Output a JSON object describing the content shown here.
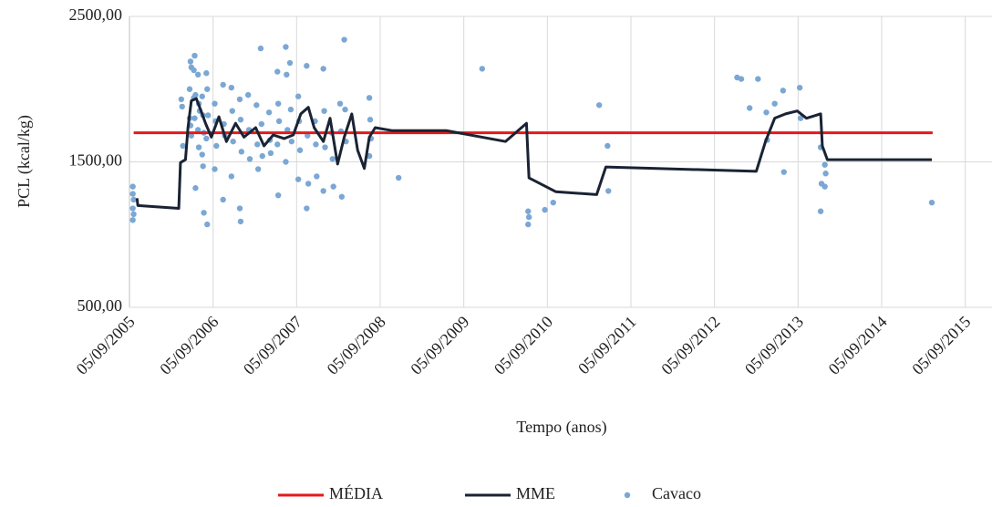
{
  "chart_data": {
    "type": "line",
    "y_label": "PCL (kcal/kg)",
    "x_label": "Tempo (anos)",
    "xlim": [
      2005.68,
      2016.0
    ],
    "ylim": [
      500,
      2500
    ],
    "xticks": [
      {
        "value": 2005.68,
        "label": "05/09/2005"
      },
      {
        "value": 2006.68,
        "label": "05/09/2006"
      },
      {
        "value": 2007.68,
        "label": "05/09/2007"
      },
      {
        "value": 2008.68,
        "label": "05/09/2008"
      },
      {
        "value": 2009.68,
        "label": "05/09/2009"
      },
      {
        "value": 2010.68,
        "label": "05/09/2010"
      },
      {
        "value": 2011.68,
        "label": "05/09/2011"
      },
      {
        "value": 2012.68,
        "label": "05/09/2012"
      },
      {
        "value": 2013.68,
        "label": "05/09/2013"
      },
      {
        "value": 2014.68,
        "label": "05/09/2014"
      },
      {
        "value": 2015.68,
        "label": "05/09/2015"
      }
    ],
    "yticks": [
      {
        "value": 500,
        "label": "500,00"
      },
      {
        "value": 1500,
        "label": "1500,00"
      },
      {
        "value": 2500,
        "label": "2500,00"
      }
    ],
    "grid": true,
    "series": [
      {
        "name": "MÉDIA",
        "type": "line",
        "color": "#e31a1c",
        "x": [
          2005.73,
          2015.29
        ],
        "values": [
          1700,
          1700
        ]
      },
      {
        "name": "MME",
        "type": "line",
        "color": "#1a2333",
        "x": [
          2005.77,
          2005.78,
          2006.27,
          2006.29,
          2006.35,
          2006.38,
          2006.42,
          2006.48,
          2006.53,
          2006.59,
          2006.66,
          2006.75,
          2006.84,
          2006.95,
          2007.05,
          2007.19,
          2007.29,
          2007.4,
          2007.53,
          2007.64,
          2007.73,
          2007.82,
          2007.89,
          2008.0,
          2008.08,
          2008.17,
          2008.25,
          2008.34,
          2008.41,
          2008.49,
          2008.55,
          2008.62,
          2008.82,
          2009.47,
          2010.18,
          2010.43,
          2010.46,
          2010.78,
          2011.27,
          2011.38,
          2013.18,
          2013.29,
          2013.4,
          2013.53,
          2013.67,
          2013.78,
          2013.95,
          2013.97,
          2014.03,
          2015.28
        ],
        "values": [
          1250,
          1200,
          1180,
          1495,
          1515,
          1735,
          1920,
          1935,
          1860,
          1765,
          1670,
          1810,
          1640,
          1765,
          1670,
          1735,
          1610,
          1685,
          1660,
          1685,
          1830,
          1875,
          1735,
          1640,
          1800,
          1485,
          1670,
          1830,
          1580,
          1455,
          1670,
          1735,
          1715,
          1715,
          1640,
          1765,
          1390,
          1295,
          1275,
          1465,
          1435,
          1640,
          1800,
          1830,
          1850,
          1800,
          1830,
          1610,
          1515,
          1515
        ]
      },
      {
        "name": "Cavaco",
        "type": "scatter",
        "color": "#7ba7d4",
        "x": [
          2005.72,
          2005.72,
          2005.73,
          2005.72,
          2005.73,
          2005.72,
          2006.3,
          2006.31,
          2006.32,
          2006.4,
          2006.41,
          2006.42,
          2006.4,
          2006.41,
          2006.42,
          2006.45,
          2006.46,
          2006.47,
          2006.45,
          2006.46,
          2006.47,
          2006.5,
          2006.51,
          2006.52,
          2006.5,
          2006.51,
          2006.55,
          2006.56,
          2006.57,
          2006.55,
          2006.56,
          2006.57,
          2006.6,
          2006.61,
          2006.62,
          2006.6,
          2006.61,
          2006.7,
          2006.71,
          2006.72,
          2006.7,
          2006.8,
          2006.81,
          2006.82,
          2006.8,
          2006.9,
          2006.91,
          2006.92,
          2006.9,
          2007.0,
          2007.01,
          2007.02,
          2007.0,
          2007.01,
          2007.1,
          2007.11,
          2007.12,
          2007.2,
          2007.21,
          2007.22,
          2007.25,
          2007.26,
          2007.27,
          2007.35,
          2007.36,
          2007.37,
          2007.45,
          2007.46,
          2007.47,
          2007.45,
          2007.46,
          2007.55,
          2007.56,
          2007.57,
          2007.55,
          2007.6,
          2007.61,
          2007.62,
          2007.7,
          2007.71,
          2007.72,
          2007.7,
          2007.8,
          2007.81,
          2007.82,
          2007.8,
          2007.9,
          2007.91,
          2007.92,
          2008.0,
          2008.01,
          2008.02,
          2008.0,
          2008.1,
          2008.11,
          2008.12,
          2008.2,
          2008.21,
          2008.22,
          2008.25,
          2008.26,
          2008.27,
          2008.55,
          2008.56,
          2008.57,
          2008.55,
          2008.9,
          2009.9,
          2010.45,
          2010.46,
          2010.45,
          2010.65,
          2010.75,
          2011.3,
          2011.4,
          2011.41,
          2012.95,
          2013.0,
          2013.1,
          2013.2,
          2013.3,
          2013.31,
          2013.4,
          2013.5,
          2013.51,
          2013.7,
          2013.71,
          2013.95,
          2013.96,
          2013.95,
          2014.0,
          2014.01,
          2014.0,
          2015.28
        ],
        "values": [
          1330,
          1280,
          1240,
          1180,
          1140,
          1100,
          1930,
          1880,
          1610,
          2000,
          2190,
          2150,
          1800,
          1750,
          1680,
          2130,
          2230,
          1960,
          1940,
          1800,
          1320,
          2100,
          1900,
          1850,
          1720,
          1600,
          1950,
          1820,
          1700,
          1550,
          1470,
          1150,
          2110,
          2000,
          1820,
          1660,
          1070,
          1900,
          1780,
          1610,
          1450,
          2030,
          1760,
          1680,
          1240,
          2010,
          1850,
          1640,
          1400,
          1930,
          1790,
          1570,
          1180,
          1090,
          1960,
          1720,
          1520,
          1890,
          1620,
          1450,
          2280,
          1760,
          1540,
          1840,
          1650,
          1560,
          2120,
          1900,
          1780,
          1620,
          1270,
          2290,
          2100,
          1720,
          1500,
          2180,
          1860,
          1640,
          1950,
          1780,
          1580,
          1380,
          2160,
          1680,
          1350,
          1180,
          1780,
          1620,
          1400,
          2140,
          1850,
          1600,
          1300,
          1700,
          1520,
          1330,
          1900,
          1710,
          1260,
          2340,
          1860,
          1640,
          1940,
          1790,
          1660,
          1540,
          1390,
          2140,
          1160,
          1120,
          1070,
          1170,
          1220,
          1890,
          1610,
          1300,
          2080,
          2070,
          1870,
          2070,
          1840,
          1650,
          1900,
          1990,
          1430,
          2010,
          1800,
          1600,
          1350,
          1160,
          1480,
          1420,
          1330,
          1220
        ]
      }
    ]
  }
}
